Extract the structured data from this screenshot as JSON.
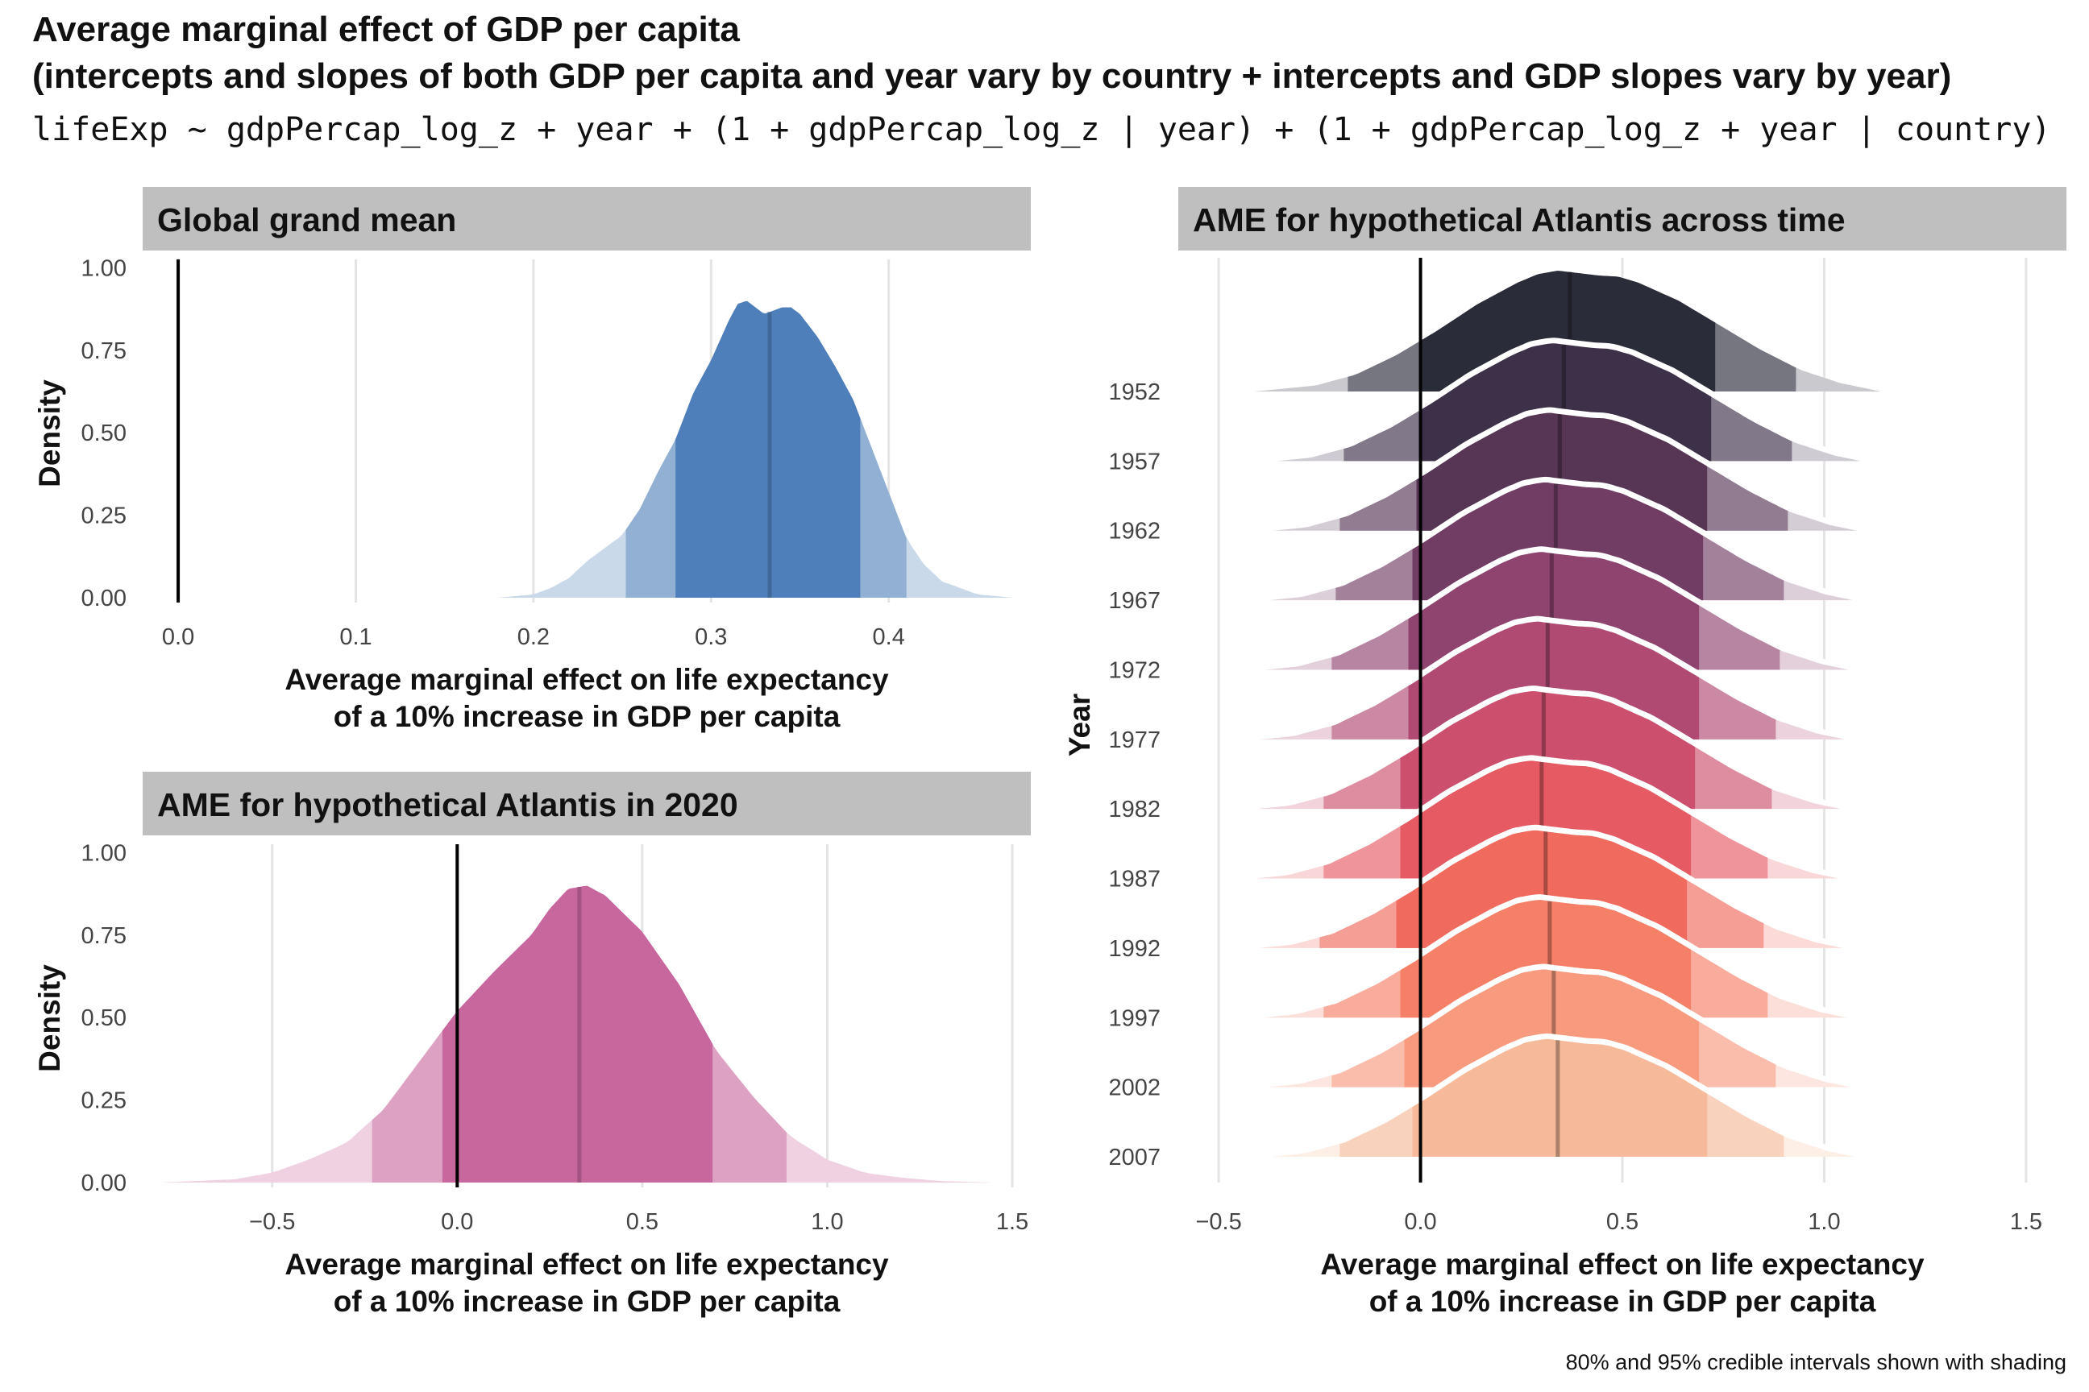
{
  "title_line1": "Average marginal effect of GDP per capita",
  "title_line2": "(intercepts and slopes of both GDP per capita and year vary by country + intercepts and GDP slopes vary by year)",
  "subtitle": "lifeExp ~ gdpPercap_log_z + year + (1 + gdpPercap_log_z | year) + (1 + gdpPercap_log_z + year | country)",
  "caption": "80% and 95% credible intervals shown with shading",
  "chart_data": [
    {
      "type": "area",
      "title": "Global grand mean",
      "xlabel_line1": "Average marginal effect on life expectancy",
      "xlabel_line2": "of a 10% increase in GDP per capita",
      "ylabel": "Density",
      "xlim": [
        -0.02,
        0.48
      ],
      "ylim": [
        0,
        1.05
      ],
      "xticks": [
        0.0,
        0.1,
        0.2,
        0.3,
        0.4
      ],
      "xtick_labels": [
        "0.0",
        "0.1",
        "0.2",
        "0.3",
        "0.4"
      ],
      "yticks": [
        0.0,
        0.25,
        0.5,
        0.75,
        1.0
      ],
      "ytick_labels": [
        "0.00",
        "0.25",
        "0.50",
        "0.75",
        "1.00"
      ],
      "color": "#4e7fba",
      "mean": 0.333,
      "ci80": [
        0.28,
        0.384
      ],
      "ci95": [
        0.252,
        0.41
      ],
      "density": {
        "x": [
          0.18,
          0.2,
          0.21,
          0.22,
          0.23,
          0.24,
          0.25,
          0.26,
          0.27,
          0.28,
          0.29,
          0.3,
          0.31,
          0.315,
          0.32,
          0.325,
          0.33,
          0.335,
          0.34,
          0.345,
          0.35,
          0.36,
          0.37,
          0.38,
          0.39,
          0.4,
          0.41,
          0.42,
          0.43,
          0.44,
          0.45,
          0.46,
          0.47
        ],
        "y": [
          0.0,
          0.01,
          0.03,
          0.06,
          0.11,
          0.15,
          0.19,
          0.27,
          0.38,
          0.48,
          0.62,
          0.72,
          0.84,
          0.89,
          0.9,
          0.88,
          0.86,
          0.87,
          0.88,
          0.88,
          0.86,
          0.79,
          0.7,
          0.6,
          0.46,
          0.32,
          0.18,
          0.1,
          0.05,
          0.03,
          0.01,
          0.005,
          0.0
        ]
      }
    },
    {
      "type": "area",
      "title": "AME for hypothetical Atlantis in 2020",
      "xlabel_line1": "Average marginal effect on life expectancy",
      "xlabel_line2": "of a 10% increase in GDP per capita",
      "ylabel": "Density",
      "xlim": [
        -0.85,
        1.55
      ],
      "ylim": [
        0,
        1.05
      ],
      "xticks": [
        -0.5,
        0.0,
        0.5,
        1.0,
        1.5
      ],
      "xtick_labels": [
        "−0.5",
        "0.0",
        "0.5",
        "1.0",
        "1.5"
      ],
      "yticks": [
        0.0,
        0.25,
        0.5,
        0.75,
        1.0
      ],
      "ytick_labels": [
        "0.00",
        "0.25",
        "0.50",
        "0.75",
        "1.00"
      ],
      "color": "#c8679e",
      "mean": 0.33,
      "ci80": [
        -0.04,
        0.69
      ],
      "ci95": [
        -0.23,
        0.89
      ],
      "density": {
        "x": [
          -0.8,
          -0.6,
          -0.5,
          -0.4,
          -0.3,
          -0.2,
          -0.1,
          0.0,
          0.1,
          0.2,
          0.25,
          0.3,
          0.35,
          0.4,
          0.5,
          0.6,
          0.7,
          0.8,
          0.9,
          1.0,
          1.1,
          1.2,
          1.3,
          1.45
        ],
        "y": [
          0.0,
          0.01,
          0.03,
          0.07,
          0.12,
          0.22,
          0.37,
          0.52,
          0.64,
          0.75,
          0.83,
          0.89,
          0.9,
          0.87,
          0.76,
          0.6,
          0.4,
          0.26,
          0.14,
          0.07,
          0.03,
          0.015,
          0.005,
          0.0
        ]
      }
    },
    {
      "type": "area",
      "subtype": "ridgeline",
      "title": "AME for hypothetical Atlantis across time",
      "xlabel_line1": "Average marginal effect on life expectancy",
      "xlabel_line2": "of a 10% increase in GDP per capita",
      "ylabel": "Year",
      "xlim": [
        -0.6,
        1.6
      ],
      "xticks": [
        -0.5,
        0.0,
        0.5,
        1.0,
        1.5
      ],
      "xtick_labels": [
        "−0.5",
        "0.0",
        "0.5",
        "1.0",
        "1.5"
      ],
      "ytick_labels": [
        "1952",
        "1957",
        "1962",
        "1967",
        "1972",
        "1977",
        "1982",
        "1987",
        "1992",
        "1997",
        "2002",
        "2007"
      ],
      "density_template": {
        "x": [
          -0.45,
          -0.3,
          -0.2,
          -0.1,
          0.0,
          0.1,
          0.2,
          0.25,
          0.3,
          0.35,
          0.4,
          0.45,
          0.5,
          0.6,
          0.7,
          0.8,
          0.9,
          1.0,
          1.1
        ],
        "y": [
          0.0,
          0.05,
          0.14,
          0.3,
          0.5,
          0.72,
          0.9,
          0.97,
          1.0,
          0.98,
          0.96,
          0.95,
          0.9,
          0.75,
          0.55,
          0.35,
          0.18,
          0.07,
          0.0
        ]
      },
      "series": [
        {
          "name": "1952",
          "mean": 0.37,
          "ci80": [
            0.0,
            0.73
          ],
          "ci95": [
            -0.18,
            0.93
          ],
          "color": "#2b2c3a"
        },
        {
          "name": "1957",
          "mean": 0.355,
          "ci80": [
            0.0,
            0.72
          ],
          "ci95": [
            -0.19,
            0.92
          ],
          "color": "#3d3049"
        },
        {
          "name": "1962",
          "mean": 0.345,
          "ci80": [
            -0.01,
            0.71
          ],
          "ci95": [
            -0.2,
            0.91
          ],
          "color": "#563555"
        },
        {
          "name": "1967",
          "mean": 0.335,
          "ci80": [
            -0.02,
            0.7
          ],
          "ci95": [
            -0.21,
            0.9
          ],
          "color": "#723d65"
        },
        {
          "name": "1972",
          "mean": 0.325,
          "ci80": [
            -0.03,
            0.69
          ],
          "ci95": [
            -0.22,
            0.89
          ],
          "color": "#8f436f"
        },
        {
          "name": "1977",
          "mean": 0.315,
          "ci80": [
            -0.03,
            0.69
          ],
          "ci95": [
            -0.22,
            0.88
          ],
          "color": "#b04a72"
        },
        {
          "name": "1982",
          "mean": 0.305,
          "ci80": [
            -0.05,
            0.68
          ],
          "ci95": [
            -0.24,
            0.87
          ],
          "color": "#cc4f6e"
        },
        {
          "name": "1987",
          "mean": 0.3,
          "ci80": [
            -0.05,
            0.67
          ],
          "ci95": [
            -0.24,
            0.86
          ],
          "color": "#e65a63"
        },
        {
          "name": "1992",
          "mean": 0.31,
          "ci80": [
            -0.06,
            0.66
          ],
          "ci95": [
            -0.25,
            0.85
          ],
          "color": "#f06a5e"
        },
        {
          "name": "1997",
          "mean": 0.32,
          "ci80": [
            -0.05,
            0.67
          ],
          "ci95": [
            -0.24,
            0.86
          ],
          "color": "#f57f67"
        },
        {
          "name": "2002",
          "mean": 0.33,
          "ci80": [
            -0.04,
            0.69
          ],
          "ci95": [
            -0.22,
            0.88
          ],
          "color": "#f79a7e"
        },
        {
          "name": "2007",
          "mean": 0.34,
          "ci80": [
            -0.02,
            0.71
          ],
          "ci95": [
            -0.2,
            0.9
          ],
          "color": "#f6b999"
        }
      ]
    }
  ]
}
